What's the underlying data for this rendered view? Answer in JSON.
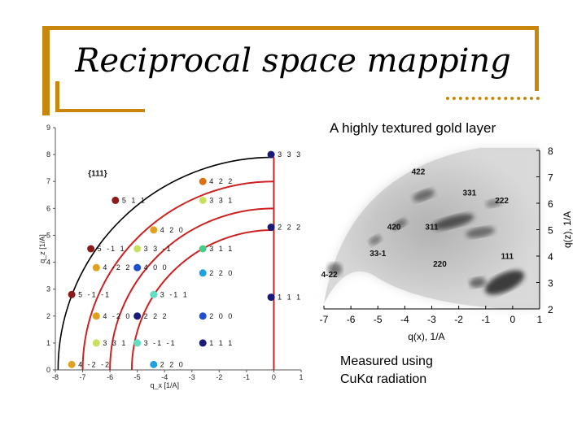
{
  "slide": {
    "title": "Reciprocal space mapping",
    "subtitle": "A highly textured gold layer",
    "caption_line1": "Measured using",
    "caption_line2": "CuKα radiation",
    "accent_color": "#c8860c"
  },
  "chart_data": [
    {
      "type": "scatter",
      "title": "",
      "xlabel": "q_x [1/A]",
      "ylabel": "q_z [1/A]",
      "xlim": [
        -8,
        1
      ],
      "ylim": [
        0,
        9
      ],
      "x_ticks": [
        -8,
        -7,
        -6,
        -5,
        -4,
        -3,
        -2,
        -1,
        0,
        1
      ],
      "y_ticks": [
        0,
        1,
        2,
        3,
        4,
        5,
        6,
        7,
        8,
        9
      ],
      "annotation": "{111}",
      "series": [
        {
          "points": [
            {
              "x": -0.1,
              "y": 8.0,
              "label": "3 3 3",
              "color": "#1a1a7a"
            },
            {
              "x": -2.6,
              "y": 7.0,
              "label": "4 2 2",
              "color": "#dc7010"
            },
            {
              "x": -5.8,
              "y": 6.3,
              "label": "5 1 1",
              "color": "#8b1a1a"
            },
            {
              "x": -2.6,
              "y": 6.3,
              "label": "3 3 1",
              "color": "#c8e060"
            },
            {
              "x": -4.4,
              "y": 5.2,
              "label": "4 2 0",
              "color": "#e0a020"
            },
            {
              "x": -0.1,
              "y": 5.3,
              "label": "2 2 2",
              "color": "#1a1a7a"
            },
            {
              "x": -6.7,
              "y": 4.5,
              "label": "5 -1 1",
              "color": "#8b1a1a"
            },
            {
              "x": -5.0,
              "y": 4.5,
              "label": "3 3 -1",
              "color": "#c8e060"
            },
            {
              "x": -2.6,
              "y": 4.5,
              "label": "3 1 1",
              "color": "#44cc88"
            },
            {
              "x": -6.5,
              "y": 3.8,
              "label": "4 -2 2",
              "color": "#e0a020"
            },
            {
              "x": -5.0,
              "y": 3.8,
              "label": "4 0 0",
              "color": "#2050d0"
            },
            {
              "x": -2.6,
              "y": 3.6,
              "label": "2 2 0",
              "color": "#20a0e0"
            },
            {
              "x": -7.4,
              "y": 2.8,
              "label": "5 -1 -1",
              "color": "#8b1a1a"
            },
            {
              "x": -4.4,
              "y": 2.8,
              "label": "3 -1 1",
              "color": "#60e0c0"
            },
            {
              "x": -0.1,
              "y": 2.7,
              "label": "1 1 1",
              "color": "#1a1a7a"
            },
            {
              "x": -6.5,
              "y": 2.0,
              "label": "4 -2 0",
              "color": "#e0a020"
            },
            {
              "x": -5.0,
              "y": 2.0,
              "label": "2 2 2",
              "color": "#1a1a7a"
            },
            {
              "x": -2.6,
              "y": 2.0,
              "label": "2 0 0",
              "color": "#2050d0"
            },
            {
              "x": -6.5,
              "y": 1.0,
              "label": "3 3 1",
              "color": "#c8e060"
            },
            {
              "x": -5.0,
              "y": 1.0,
              "label": "3 -1 -1",
              "color": "#60e0c0"
            },
            {
              "x": -2.6,
              "y": 1.0,
              "label": "1 1 1",
              "color": "#1a1a7a"
            },
            {
              "x": -7.4,
              "y": 0.2,
              "label": "4 -2 -2",
              "color": "#e0a020"
            },
            {
              "x": -4.4,
              "y": 0.2,
              "label": "2 2 0",
              "color": "#20a0e0"
            }
          ]
        }
      ],
      "arcs": [
        {
          "radius": 7.9,
          "color": "#000000"
        },
        {
          "radius": 5.2,
          "color": "#cc2222"
        },
        {
          "radius": 6.0,
          "color": "#cc2222"
        },
        {
          "radius": 7.0,
          "color": "#cc2222"
        }
      ],
      "grid": false
    },
    {
      "type": "heatmap",
      "title": "",
      "xlabel": "q(x), 1/A",
      "ylabel": "q(z), 1/A",
      "xlim": [
        -7,
        1
      ],
      "ylim": [
        2,
        8
      ],
      "x_ticks": [
        -7,
        -6,
        -5,
        -4,
        -3,
        -2,
        -1,
        0,
        1
      ],
      "y_ticks": [
        2,
        3,
        4,
        5,
        6,
        7,
        8
      ],
      "annotations": [
        "422",
        "331",
        "222",
        "420",
        "311",
        "33-1",
        "111",
        "220",
        "4-22"
      ]
    }
  ]
}
